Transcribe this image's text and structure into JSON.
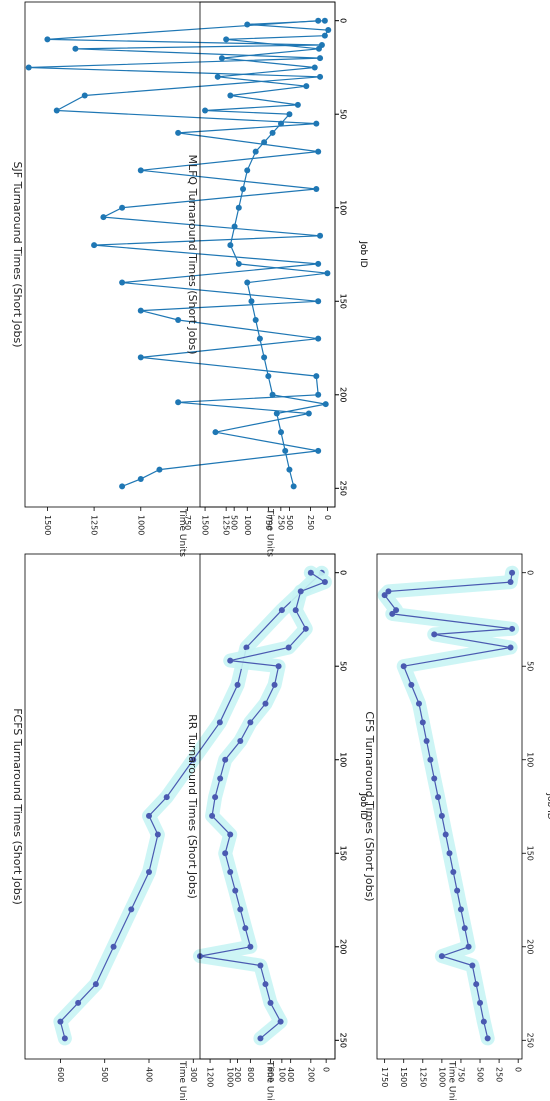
{
  "chart_data": [
    {
      "id": "fcfs",
      "type": "line",
      "title": "FCFS Turnaround Times (Short Jobs)",
      "xlabel": "Job ID",
      "ylabel": "Time Units",
      "xlim": [
        -10,
        260
      ],
      "ylim": [
        -20,
        680
      ],
      "xticks": [
        0,
        50,
        100,
        150,
        200,
        250
      ],
      "yticks": [
        0,
        100,
        200,
        300,
        400,
        500,
        600
      ],
      "color": "#4a5ab1",
      "band": true,
      "series": [
        {
          "x": [
            0,
            20,
            40,
            60,
            80,
            100,
            120,
            130,
            140,
            160,
            180,
            200,
            220,
            230,
            240,
            249
          ],
          "y": [
            10,
            100,
            180,
            200,
            240,
            300,
            360,
            400,
            380,
            400,
            440,
            480,
            520,
            560,
            600,
            590
          ]
        }
      ]
    },
    {
      "id": "rr",
      "type": "line",
      "title": "RR Turnaround Times (Short Jobs)",
      "xlabel": "Job ID",
      "ylabel": "Time Units",
      "xlim": [
        -10,
        260
      ],
      "ylim": [
        -40,
        1300
      ],
      "xticks": [
        0,
        50,
        100,
        150,
        200,
        250
      ],
      "yticks": [
        200,
        400,
        600,
        800,
        1000,
        1200
      ],
      "color": "#4a5ab1",
      "band": true,
      "series": [
        {
          "x": [
            0,
            5,
            10,
            20,
            30,
            40,
            47,
            50,
            60,
            70,
            80,
            90,
            100,
            110,
            120,
            130,
            140,
            150,
            160,
            170,
            180,
            190,
            200,
            205,
            210,
            220,
            230,
            240,
            249
          ],
          "y": [
            200,
            60,
            300,
            350,
            250,
            420,
            1000,
            520,
            560,
            650,
            800,
            900,
            1050,
            1100,
            1150,
            1180,
            1000,
            1050,
            1000,
            950,
            900,
            850,
            800,
            1300,
            700,
            650,
            600,
            500,
            700
          ]
        }
      ]
    },
    {
      "id": "cfs",
      "type": "line",
      "title": "CFS Turnaround Times (Short Jobs)",
      "xlabel": "Job ID",
      "ylabel": "Time Units",
      "xlim": [
        -10,
        260
      ],
      "ylim": [
        -50,
        1850
      ],
      "xticks": [
        0,
        50,
        100,
        150,
        200,
        250
      ],
      "yticks": [
        0,
        250,
        500,
        750,
        1000,
        1250,
        1500,
        1750
      ],
      "color": "#4a5ab1",
      "band": true,
      "series": [
        {
          "x": [
            0,
            5,
            10,
            12,
            20,
            22,
            30,
            33,
            40,
            50,
            60,
            70,
            80,
            90,
            100,
            110,
            120,
            130,
            140,
            150,
            160,
            170,
            180,
            190,
            200,
            205,
            210,
            220,
            230,
            240,
            249
          ],
          "y": [
            80,
            100,
            1700,
            1750,
            1600,
            1650,
            80,
            1100,
            100,
            1500,
            1400,
            1300,
            1250,
            1200,
            1150,
            1100,
            1050,
            1000,
            950,
            900,
            850,
            800,
            750,
            700,
            650,
            1000,
            600,
            550,
            500,
            450,
            400
          ]
        }
      ]
    },
    {
      "id": "sjf",
      "type": "line",
      "title": "SJF Turnaround Times (Short Jobs)",
      "xlabel": "Job ID",
      "ylabel": "Time Units",
      "xlim": [
        -10,
        260
      ],
      "ylim": [
        -40,
        1620
      ],
      "xticks": [
        0,
        50,
        100,
        150,
        200,
        250
      ],
      "yticks": [
        0,
        250,
        500,
        750,
        1000,
        1250,
        1500
      ],
      "color": "#1f77b4",
      "band": false,
      "series": [
        {
          "x": [
            0,
            10,
            13,
            15,
            20,
            25,
            30,
            40,
            48,
            55,
            60,
            70,
            80,
            90,
            100,
            105,
            115,
            120,
            130,
            140,
            150,
            155,
            160,
            170,
            180,
            190,
            200,
            204,
            210,
            220,
            230,
            240,
            245,
            249
          ],
          "y": [
            50,
            1500,
            30,
            1350,
            40,
            1600,
            40,
            1300,
            1450,
            60,
            800,
            50,
            1000,
            60,
            1100,
            1200,
            40,
            1250,
            50,
            1100,
            50,
            1000,
            800,
            50,
            1000,
            60,
            50,
            800,
            100,
            600,
            50,
            900,
            1000,
            1100
          ]
        }
      ]
    },
    {
      "id": "mlfq",
      "type": "line",
      "title": "MLFQ Turnaround Times (Short Jobs)",
      "xlabel": "Job ID",
      "ylabel": "Time Units",
      "xlim": [
        -10,
        260
      ],
      "ylim": [
        -40,
        1560
      ],
      "xticks": [
        0,
        50,
        100,
        150,
        200,
        250
      ],
      "yticks": [
        250,
        500,
        750,
        1000,
        1250,
        1500
      ],
      "color": "#1f77b4",
      "band": false,
      "series": [
        {
          "x": [
            0,
            2,
            5,
            8,
            10,
            15,
            20,
            25,
            30,
            35,
            40,
            45,
            48,
            50,
            55,
            60,
            65,
            70,
            80,
            90,
            100,
            110,
            120,
            130,
            135,
            140,
            150,
            160,
            170,
            180,
            190,
            200,
            205,
            210,
            220,
            230,
            240,
            249
          ],
          "y": [
            80,
            1000,
            40,
            80,
            1250,
            150,
            1300,
            200,
            1350,
            300,
            1200,
            400,
            1500,
            500,
            600,
            700,
            800,
            900,
            1000,
            1050,
            1100,
            1150,
            1200,
            1100,
            50,
            1000,
            950,
            900,
            850,
            800,
            750,
            700,
            70,
            650,
            600,
            550,
            500,
            450
          ]
        }
      ]
    }
  ]
}
